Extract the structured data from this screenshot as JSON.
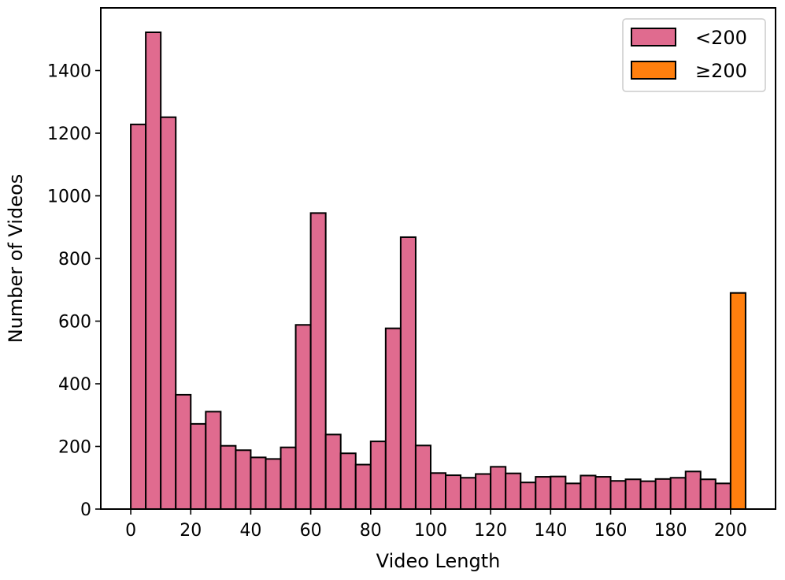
{
  "chart_data": {
    "type": "bar",
    "xlabel": "Video Length",
    "ylabel": "Number of Videos",
    "xlim": [
      -10,
      215
    ],
    "ylim": [
      0,
      1600
    ],
    "x_ticks": [
      0,
      20,
      40,
      60,
      80,
      100,
      120,
      140,
      160,
      180,
      200
    ],
    "y_ticks": [
      0,
      200,
      400,
      600,
      800,
      1000,
      1200,
      1400
    ],
    "bin_width": 5,
    "legend_position": "top-right",
    "series": [
      {
        "name": "<200",
        "color": "#e06b8f",
        "bin_starts": [
          0,
          5,
          10,
          15,
          20,
          25,
          30,
          35,
          40,
          45,
          50,
          55,
          60,
          65,
          70,
          75,
          80,
          85,
          90,
          95,
          100,
          105,
          110,
          115,
          120,
          125,
          130,
          135,
          140,
          145,
          150,
          155,
          160,
          165,
          170,
          175,
          180,
          185,
          190,
          195
        ],
        "values": [
          1228,
          1522,
          1251,
          365,
          272,
          311,
          202,
          188,
          165,
          160,
          197,
          588,
          945,
          238,
          178,
          142,
          216,
          577,
          868,
          203,
          115,
          108,
          100,
          112,
          135,
          114,
          85,
          103,
          104,
          82,
          107,
          103,
          90,
          95,
          89,
          96,
          100,
          120,
          95,
          82
        ]
      },
      {
        "name": "≥200",
        "color": "#ff7f0e",
        "bin_starts": [
          200
        ],
        "values": [
          690
        ]
      }
    ]
  }
}
